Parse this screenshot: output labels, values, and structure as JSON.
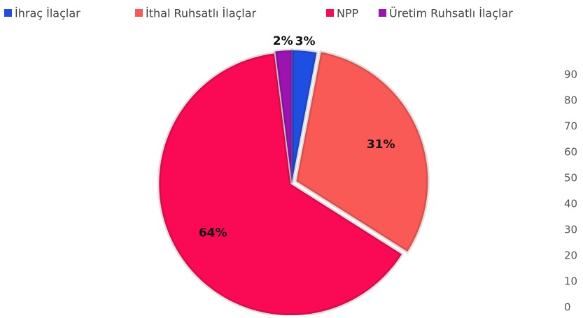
{
  "chart_data": {
    "type": "pie",
    "categories": [
      "İhraç İlaçlar",
      "İthal Ruhsatlı İlaçlar",
      "NPP",
      "Üretim Ruhsatlı İlaçlar"
    ],
    "values": [
      3,
      31,
      64,
      2
    ],
    "value_labels": [
      "3%",
      "31%",
      "64%",
      "2%"
    ],
    "colors": [
      "#1f4fe0",
      "#fa5a55",
      "#fa0a55",
      "#9b14b0"
    ],
    "yticks": [
      0,
      10,
      20,
      30,
      40,
      50,
      60,
      70,
      80,
      90
    ],
    "legend": "top"
  }
}
